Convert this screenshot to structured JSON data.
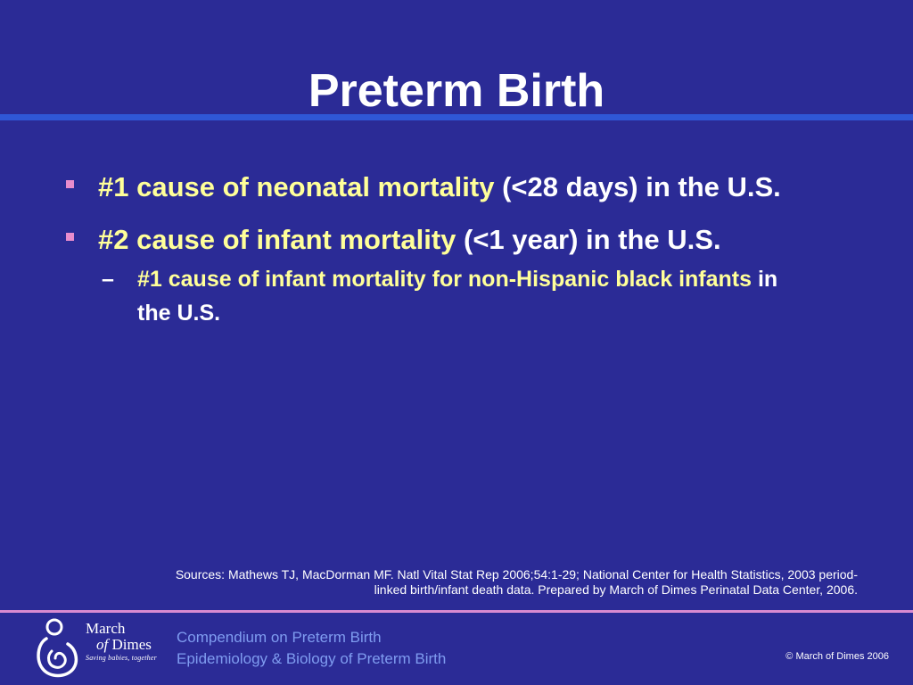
{
  "slide": {
    "title": "Preterm Birth",
    "bullets": [
      {
        "highlight": "#1 cause of neonatal mortality",
        "rest": " (<28 days) in the U.S."
      },
      {
        "highlight": "#2 cause of infant mortality",
        "rest": " (<1 year) in the U.S.",
        "sub": [
          {
            "highlight": "#1 cause of infant mortality for non-Hispanic black infants",
            "rest": " in the U.S."
          }
        ]
      }
    ],
    "sub_bullet_marker": "–",
    "sources_line1": "Sources: Mathews TJ, MacDorman MF. Natl Vital Stat Rep 2006;54:1-29; National Center for Health Statistics, 2003 period-",
    "sources_line2": "linked birth/infant death data. Prepared by March of Dimes Perinatal Data Center, 2006."
  },
  "footer": {
    "logo": {
      "march": "March",
      "of": "of",
      "dimes": "Dimes",
      "tagline": "Saving babies, together"
    },
    "title_line1": "Compendium on Preterm Birth",
    "title_line2": "Epidemiology & Biology of Preterm Birth",
    "copyright": "©  March of Dimes 2006"
  },
  "colors": {
    "background": "#2b2b96",
    "title_rule": "#2f57d6",
    "highlight_text": "#ffff99",
    "bullet_marker": "#e88ccd",
    "footer_rule": "#d98ad0",
    "footer_text": "#7f9cf0"
  }
}
